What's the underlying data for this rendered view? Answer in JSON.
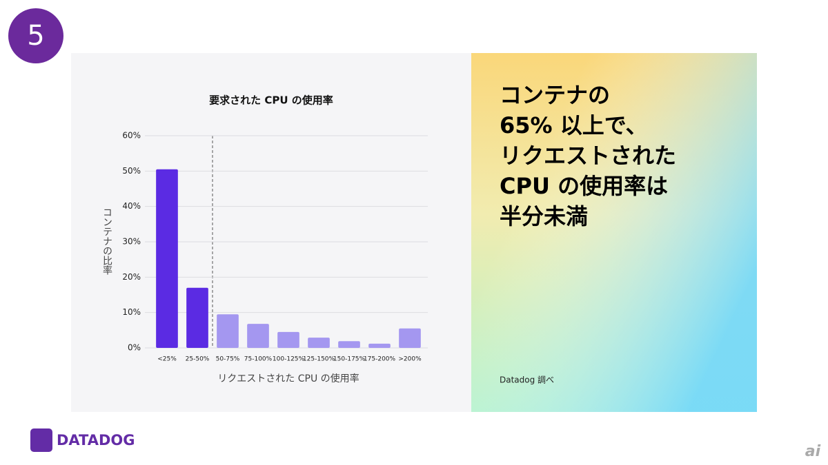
{
  "badge": "5",
  "chart_data": {
    "type": "bar",
    "title": "要求された CPU の使用率",
    "x_label": "リクエストされた CPU の使用率",
    "y_label": "コンテナの比率",
    "categories": [
      "<25%",
      "25-50%",
      "50-75%",
      "75-100%",
      "100-125%",
      "125-150%",
      "150-175%",
      "175-200%",
      ">200%"
    ],
    "values": [
      50.5,
      17.0,
      9.5,
      6.8,
      4.5,
      2.9,
      1.9,
      1.2,
      5.5
    ],
    "colors": [
      "#5b2be3",
      "#5b2be3",
      "#a497f0",
      "#a497f0",
      "#a497f0",
      "#a497f0",
      "#a497f0",
      "#a497f0",
      "#a497f0"
    ],
    "ylim": [
      0,
      60
    ],
    "yticks": [
      {
        "value": 0,
        "label": "0%"
      },
      {
        "value": 10,
        "label": "10%"
      },
      {
        "value": 20,
        "label": "20%"
      },
      {
        "value": 30,
        "label": "30%"
      },
      {
        "value": 40,
        "label": "40%"
      },
      {
        "value": 50,
        "label": "50%"
      },
      {
        "value": 60,
        "label": "60%"
      }
    ],
    "grid": true
  },
  "headline": [
    "コンテナの",
    "65% 以上で、",
    "リクエストされた",
    "CPU の使用率は",
    "半分未満"
  ],
  "source": "Datadog 調べ",
  "logo": "DATADOG",
  "watermark": "ai"
}
